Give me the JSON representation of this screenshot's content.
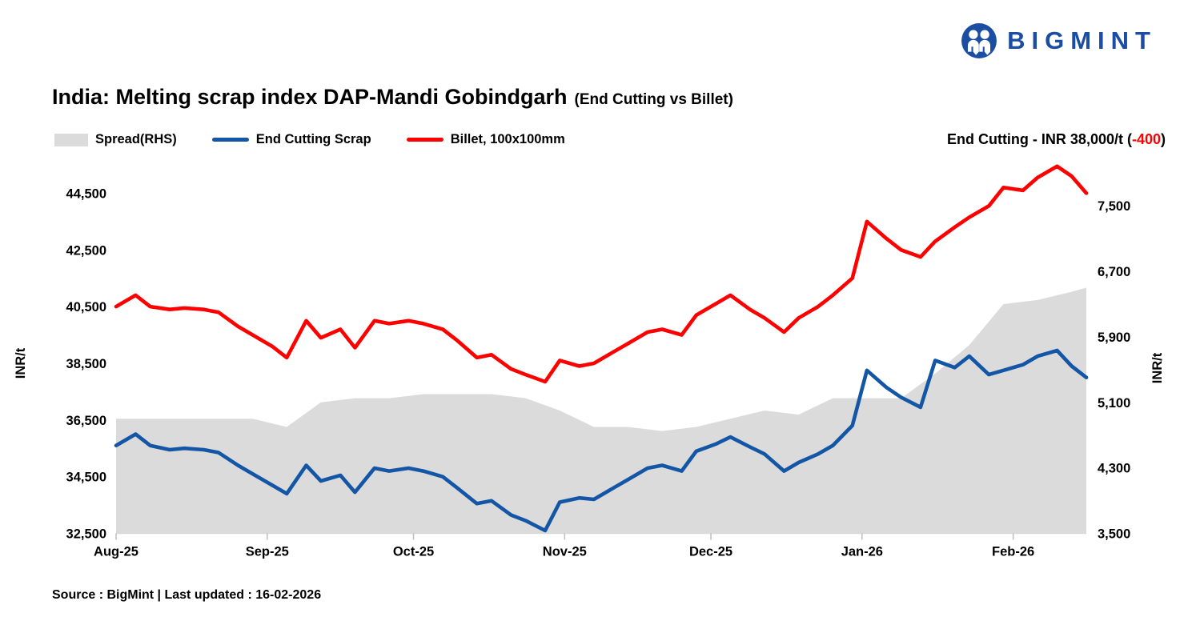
{
  "logo": {
    "text": "BIGMINT",
    "color": "#1B4DA3",
    "icon": "bigmint-people-icon"
  },
  "title": {
    "main": "India: Melting scrap index DAP-Mandi Gobindgarh",
    "sub": "(End Cutting vs Billet)"
  },
  "legend": {
    "items": [
      {
        "label": "Spread(RHS)",
        "type": "area",
        "color": "#DBDBDB"
      },
      {
        "label": "End Cutting Scrap",
        "type": "line",
        "color": "#1356A6"
      },
      {
        "label": "Billet, 100x100mm",
        "type": "line",
        "color": "#FF0000"
      }
    ]
  },
  "annotation": {
    "prefix": "End Cutting - INR 38,000/t (",
    "change": "-400",
    "suffix": ")",
    "change_color": "#FF0000"
  },
  "source": "Source : BigMint | Last updated : 16-02-2026",
  "chart_data": {
    "type": "line+area",
    "title": "India: Melting scrap index DAP-Mandi Gobindgarh (End Cutting vs Billet)",
    "grid": false,
    "legend_position": "top-left",
    "x_axis": {
      "labels": [
        "Aug-25",
        "Sep-25",
        "Oct-25",
        "Nov-25",
        "Dec-25",
        "Jan-26",
        "Feb-26"
      ],
      "label_days": [
        0,
        31,
        61,
        92,
        122,
        153,
        184
      ],
      "day_max": 199,
      "x_unit": "days since 01-Aug-2025, last point 16-02-2026"
    },
    "left_axis": {
      "label": "INR/t",
      "min": 32500,
      "max": 45500,
      "ticks": [
        44500,
        42500,
        40500,
        38500,
        36500,
        34500,
        32500
      ]
    },
    "right_axis": {
      "label": "INR/t",
      "min": 3500,
      "max": 8000,
      "ticks": [
        7500,
        6700,
        5900,
        5100,
        4300,
        3500
      ]
    },
    "days": [
      0,
      4,
      7,
      11,
      14,
      18,
      21,
      25,
      28,
      32,
      35,
      39,
      42,
      46,
      49,
      53,
      56,
      60,
      63,
      67,
      70,
      74,
      77,
      81,
      84,
      88,
      91,
      95,
      98,
      102,
      105,
      109,
      112,
      116,
      119,
      123,
      126,
      130,
      133,
      137,
      140,
      144,
      147,
      151,
      154,
      158,
      161,
      165,
      168,
      172,
      175,
      179,
      182,
      186,
      189,
      193,
      196,
      199
    ],
    "series": [
      {
        "name": "Billet, 100x100mm",
        "axis": "left",
        "color": "#FF0000",
        "values": [
          40500,
          40900,
          40500,
          40400,
          40450,
          40400,
          40300,
          39800,
          39500,
          39100,
          38700,
          40000,
          39400,
          39700,
          39050,
          40000,
          39900,
          40000,
          39900,
          39700,
          39300,
          38700,
          38800,
          38300,
          38100,
          37850,
          38600,
          38400,
          38500,
          38900,
          39200,
          39600,
          39700,
          39500,
          40200,
          40600,
          40900,
          40400,
          40100,
          39600,
          40100,
          40500,
          40900,
          41500,
          43500,
          42900,
          42500,
          42250,
          42800,
          43300,
          43650,
          44050,
          44700,
          44600,
          45050,
          45450,
          45100,
          44500
        ]
      },
      {
        "name": "End Cutting Scrap",
        "axis": "left",
        "color": "#1356A6",
        "values": [
          35600,
          36000,
          35600,
          35450,
          35500,
          35450,
          35350,
          34900,
          34600,
          34200,
          33900,
          34900,
          34350,
          34550,
          33950,
          34800,
          34700,
          34800,
          34700,
          34500,
          34100,
          33550,
          33650,
          33150,
          32950,
          32600,
          33600,
          33750,
          33700,
          34100,
          34400,
          34800,
          34900,
          34700,
          35400,
          35650,
          35900,
          35550,
          35300,
          34700,
          35000,
          35300,
          35600,
          36300,
          38250,
          37650,
          37300,
          36950,
          38600,
          38350,
          38750,
          38100,
          38250,
          38450,
          38750,
          38950,
          38400,
          38000
        ]
      }
    ],
    "spread": {
      "name": "Spread(RHS)",
      "axis": "right",
      "color": "#DBDBDB",
      "days": [
        0,
        7,
        14,
        21,
        28,
        35,
        42,
        49,
        56,
        63,
        70,
        77,
        84,
        91,
        98,
        105,
        112,
        119,
        126,
        133,
        140,
        147,
        154,
        161,
        168,
        175,
        182,
        189,
        196,
        199
      ],
      "values": [
        4900,
        4900,
        4900,
        4900,
        4900,
        4800,
        5100,
        5150,
        5150,
        5200,
        5200,
        5200,
        5150,
        5000,
        4800,
        4800,
        4750,
        4800,
        4900,
        5000,
        4950,
        5150,
        5150,
        5150,
        5450,
        5800,
        6300,
        6350,
        6450,
        6500
      ]
    },
    "latest": {
      "end_cutting_scrap": 38000,
      "change": -400,
      "billet": 44500,
      "spread": 6500
    }
  }
}
